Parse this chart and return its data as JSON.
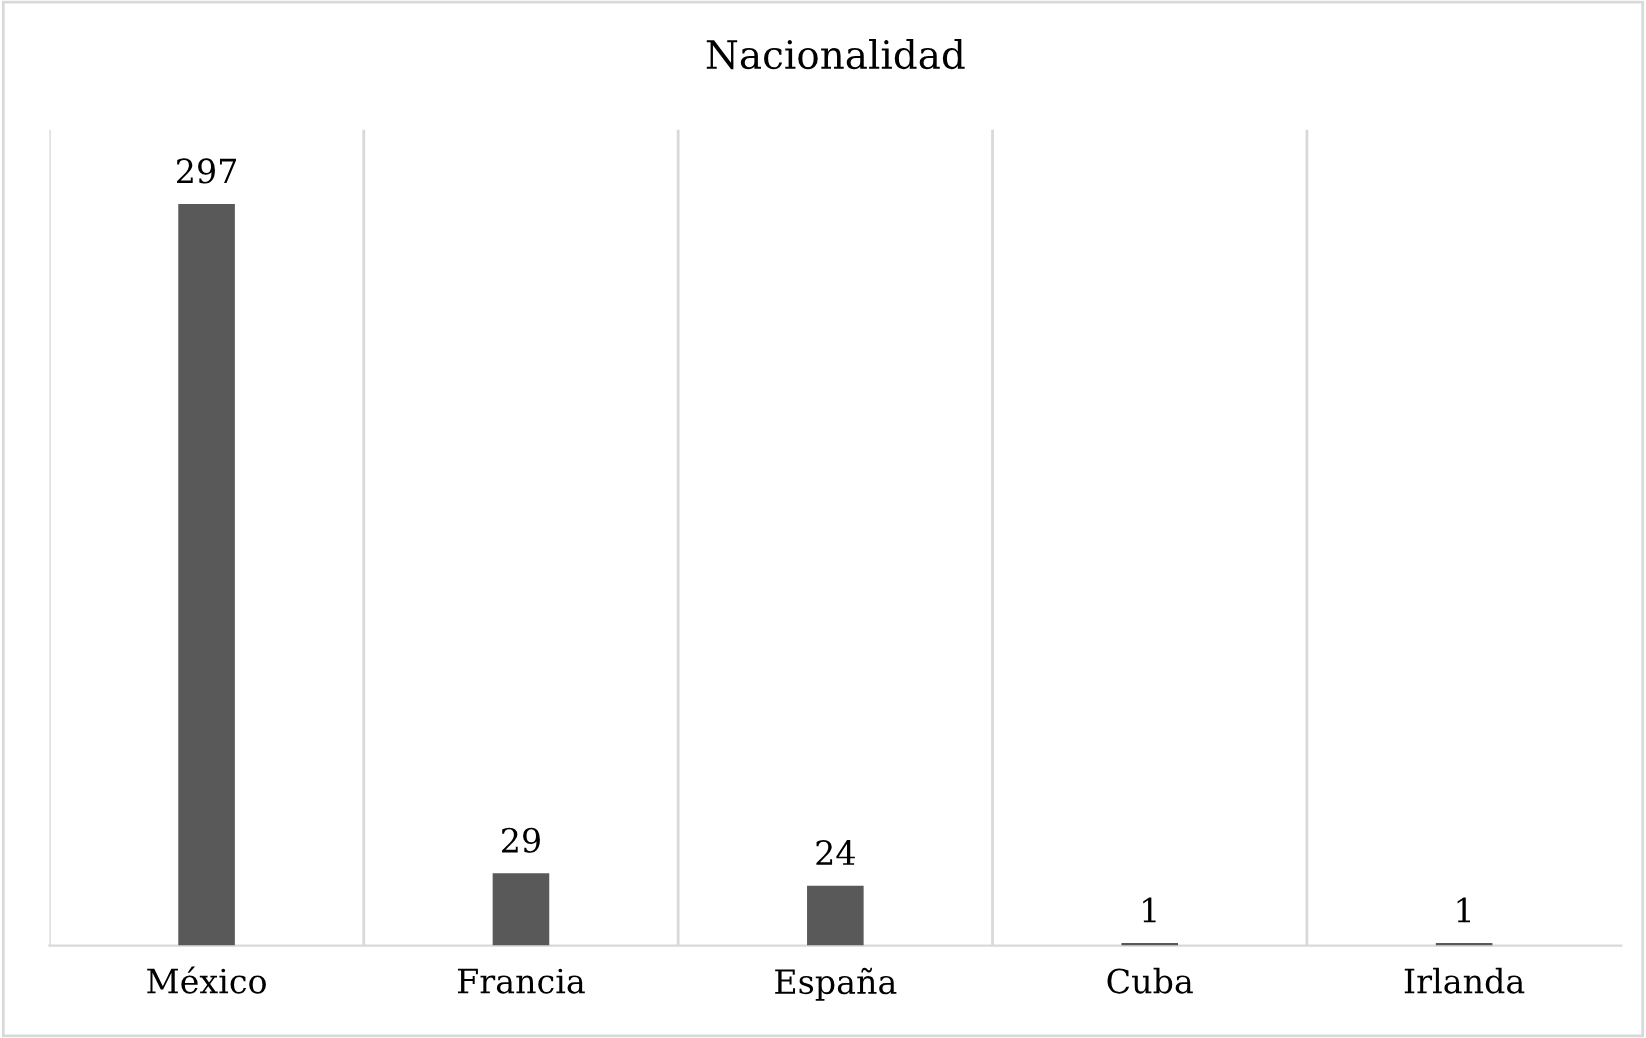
{
  "chart_data": {
    "type": "bar",
    "title": "Nacionalidad",
    "categories": [
      "México",
      "Francia",
      "España",
      "Cuba",
      "Irlanda"
    ],
    "values": [
      297,
      29,
      24,
      1,
      1
    ],
    "color": "#595959",
    "data_labels": true,
    "grid": "x"
  }
}
